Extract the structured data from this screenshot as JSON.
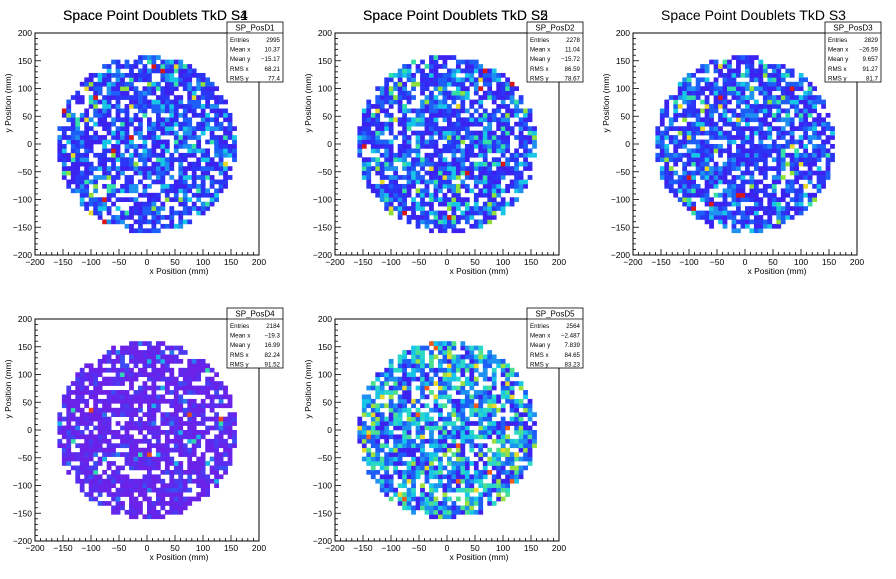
{
  "chart_data": [
    {
      "type": "heatmap",
      "title": "Space Point Doublets TkD S1",
      "xlabel": "x Position (mm)",
      "ylabel": "y Position (mm)",
      "xlim": [
        -200,
        200
      ],
      "ylim": [
        -200,
        200
      ],
      "xticks": [
        "−200",
        "−150",
        "−100",
        "−50",
        "0",
        "50",
        "100",
        "150",
        "200"
      ],
      "yticks": [
        "−200",
        "−150",
        "−100",
        "−50",
        "0",
        "50",
        "100",
        "150",
        "200"
      ],
      "palette": "blue",
      "stats": {
        "name": "SP_PosD1",
        "rows": [
          {
            "label": "Entries",
            "value": "2995"
          },
          {
            "label": "Mean x",
            "value": "10.37"
          },
          {
            "label": "Mean y",
            "value": "−15.17"
          },
          {
            "label": "RMS x",
            "value": "68.21"
          },
          {
            "label": "RMS y",
            "value": "77.4"
          }
        ]
      }
    },
    {
      "type": "heatmap",
      "title": "Space Point Doublets TkD S2",
      "xlabel": "x Position (mm)",
      "ylabel": "y Position (mm)",
      "xlim": [
        -200,
        200
      ],
      "ylim": [
        -200,
        200
      ],
      "xticks": [
        "−200",
        "−150",
        "−100",
        "−50",
        "0",
        "50",
        "100",
        "150",
        "200"
      ],
      "yticks": [
        "−200",
        "−150",
        "−100",
        "−50",
        "0",
        "50",
        "100",
        "150",
        "200"
      ],
      "palette": "blue",
      "stats": {
        "name": "SP_PosD2",
        "rows": [
          {
            "label": "Entries",
            "value": "2278"
          },
          {
            "label": "Mean x",
            "value": "11.04"
          },
          {
            "label": "Mean y",
            "value": "−15.72"
          },
          {
            "label": "RMS x",
            "value": "86.59"
          },
          {
            "label": "RMS y",
            "value": "78.67"
          }
        ]
      }
    },
    {
      "type": "heatmap",
      "title": "Space Point Doublets TkD S3",
      "xlabel": "x Position (mm)",
      "ylabel": "y Position (mm)",
      "xlim": [
        -200,
        200
      ],
      "ylim": [
        -200,
        200
      ],
      "xticks": [
        "−200",
        "−150",
        "−100",
        "−50",
        "0",
        "50",
        "100",
        "150",
        "200"
      ],
      "yticks": [
        "−200",
        "−150",
        "−100",
        "−50",
        "0",
        "50",
        "100",
        "150",
        "200"
      ],
      "palette": "blue",
      "stats": {
        "name": "SP_PosD3",
        "rows": [
          {
            "label": "Entries",
            "value": "2829"
          },
          {
            "label": "Mean x",
            "value": "−26.59"
          },
          {
            "label": "Mean y",
            "value": "9.657"
          },
          {
            "label": "RMS x",
            "value": "91.27"
          },
          {
            "label": "RMS y",
            "value": "81.7"
          }
        ]
      }
    },
    {
      "type": "heatmap",
      "title": "Space Point Doublets TkD S4",
      "xlabel": "x Position (mm)",
      "ylabel": "y Position (mm)",
      "xlim": [
        -200,
        200
      ],
      "ylim": [
        -200,
        200
      ],
      "xticks": [
        "−200",
        "−150",
        "−100",
        "−50",
        "0",
        "50",
        "100",
        "150",
        "200"
      ],
      "yticks": [
        "−200",
        "−150",
        "−100",
        "−50",
        "0",
        "50",
        "100",
        "150",
        "200"
      ],
      "palette": "purple",
      "stats": {
        "name": "SP_PosD4",
        "rows": [
          {
            "label": "Entries",
            "value": "2184"
          },
          {
            "label": "Mean x",
            "value": "−19.3"
          },
          {
            "label": "Mean y",
            "value": "16.99"
          },
          {
            "label": "RMS x",
            "value": "82.24"
          },
          {
            "label": "RMS y",
            "value": "91.52"
          }
        ]
      }
    },
    {
      "type": "heatmap",
      "title": "Space Point Doublets TkD S5",
      "xlabel": "x Position (mm)",
      "ylabel": "y Position (mm)",
      "xlim": [
        -200,
        200
      ],
      "ylim": [
        -200,
        200
      ],
      "xticks": [
        "−200",
        "−150",
        "−100",
        "−50",
        "0",
        "50",
        "100",
        "150",
        "200"
      ],
      "yticks": [
        "−200",
        "−150",
        "−100",
        "−50",
        "0",
        "50",
        "100",
        "150",
        "200"
      ],
      "palette": "mixed",
      "stats": {
        "name": "SP_PosD5",
        "rows": [
          {
            "label": "Entries",
            "value": "2564"
          },
          {
            "label": "Mean x",
            "value": "−2.487"
          },
          {
            "label": "Mean y",
            "value": "7.839"
          },
          {
            "label": "RMS x",
            "value": "84.65"
          },
          {
            "label": "RMS y",
            "value": "83.23"
          }
        ]
      }
    }
  ],
  "colors": {
    "axis": "#000000",
    "background": "#ffffff",
    "blue_palette": [
      "#3b22f0",
      "#2a35f5",
      "#1e5ef8",
      "#1e90f0",
      "#17c6e6",
      "#35e0a8",
      "#8fe03a",
      "#e8d82a",
      "#f05a1a",
      "#d81818"
    ],
    "purple_palette": [
      "#6a22e8",
      "#5a2cf0",
      "#4a3af2",
      "#3a4cf4",
      "#2a78f0",
      "#1ab0e8",
      "#30d8b0",
      "#8ee040",
      "#e84a1a"
    ],
    "mixed_palette": [
      "#3b22f0",
      "#1e5ef8",
      "#1e90f0",
      "#17c6e6",
      "#2ad8c8",
      "#4ae090",
      "#9ae040",
      "#e8d82a",
      "#f05a1a"
    ]
  }
}
